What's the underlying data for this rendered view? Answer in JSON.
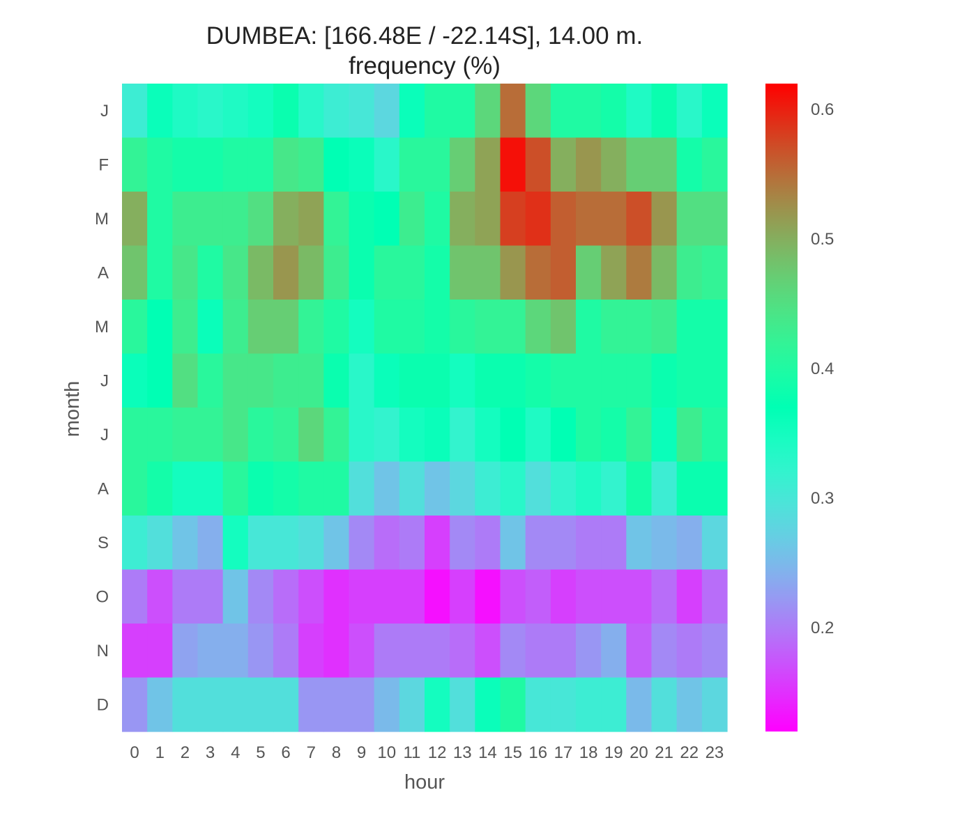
{
  "chart_data": {
    "type": "heatmap",
    "title": "DUMBEA: [166.48E / -22.14S], 14.00 m.",
    "subtitle": "frequency (%)",
    "xlabel": "hour",
    "ylabel": "month",
    "x_categories": [
      "0",
      "1",
      "2",
      "3",
      "4",
      "5",
      "6",
      "7",
      "8",
      "9",
      "10",
      "11",
      "12",
      "13",
      "14",
      "15",
      "16",
      "17",
      "18",
      "19",
      "20",
      "21",
      "22",
      "23"
    ],
    "y_categories": [
      "J",
      "F",
      "M",
      "A",
      "M",
      "J",
      "J",
      "A",
      "S",
      "O",
      "N",
      "D"
    ],
    "values": [
      [
        0.31,
        0.36,
        0.34,
        0.33,
        0.34,
        0.35,
        0.38,
        0.33,
        0.31,
        0.3,
        0.28,
        0.36,
        0.4,
        0.4,
        0.46,
        0.55,
        0.46,
        0.4,
        0.4,
        0.39,
        0.34,
        0.38,
        0.33,
        0.36
      ],
      [
        0.42,
        0.4,
        0.39,
        0.39,
        0.4,
        0.4,
        0.44,
        0.43,
        0.37,
        0.36,
        0.33,
        0.41,
        0.41,
        0.47,
        0.51,
        0.61,
        0.57,
        0.5,
        0.52,
        0.5,
        0.47,
        0.47,
        0.39,
        0.41
      ],
      [
        0.5,
        0.4,
        0.43,
        0.43,
        0.43,
        0.45,
        0.5,
        0.51,
        0.42,
        0.38,
        0.37,
        0.43,
        0.4,
        0.5,
        0.51,
        0.58,
        0.59,
        0.56,
        0.55,
        0.55,
        0.57,
        0.52,
        0.45,
        0.45
      ],
      [
        0.48,
        0.4,
        0.44,
        0.4,
        0.44,
        0.49,
        0.52,
        0.49,
        0.43,
        0.38,
        0.41,
        0.41,
        0.39,
        0.48,
        0.48,
        0.52,
        0.55,
        0.56,
        0.47,
        0.51,
        0.54,
        0.49,
        0.43,
        0.42
      ],
      [
        0.41,
        0.37,
        0.43,
        0.36,
        0.43,
        0.47,
        0.47,
        0.42,
        0.4,
        0.35,
        0.4,
        0.4,
        0.39,
        0.41,
        0.42,
        0.42,
        0.46,
        0.48,
        0.4,
        0.42,
        0.42,
        0.43,
        0.39,
        0.39
      ],
      [
        0.36,
        0.37,
        0.45,
        0.41,
        0.44,
        0.44,
        0.43,
        0.43,
        0.38,
        0.33,
        0.36,
        0.38,
        0.38,
        0.35,
        0.38,
        0.38,
        0.39,
        0.4,
        0.4,
        0.4,
        0.4,
        0.38,
        0.39,
        0.39
      ],
      [
        0.41,
        0.41,
        0.42,
        0.42,
        0.44,
        0.41,
        0.42,
        0.46,
        0.42,
        0.33,
        0.32,
        0.35,
        0.36,
        0.32,
        0.35,
        0.37,
        0.34,
        0.37,
        0.4,
        0.39,
        0.42,
        0.36,
        0.43,
        0.4
      ],
      [
        0.41,
        0.39,
        0.35,
        0.35,
        0.41,
        0.38,
        0.39,
        0.4,
        0.4,
        0.29,
        0.26,
        0.29,
        0.26,
        0.28,
        0.31,
        0.33,
        0.29,
        0.32,
        0.34,
        0.32,
        0.39,
        0.31,
        0.38,
        0.38
      ],
      [
        0.31,
        0.29,
        0.26,
        0.24,
        0.35,
        0.3,
        0.3,
        0.29,
        0.26,
        0.21,
        0.19,
        0.2,
        0.16,
        0.21,
        0.2,
        0.26,
        0.21,
        0.21,
        0.2,
        0.2,
        0.26,
        0.25,
        0.24,
        0.28
      ],
      [
        0.2,
        0.17,
        0.2,
        0.2,
        0.26,
        0.21,
        0.19,
        0.17,
        0.15,
        0.16,
        0.16,
        0.16,
        0.13,
        0.16,
        0.13,
        0.17,
        0.18,
        0.16,
        0.17,
        0.17,
        0.17,
        0.19,
        0.16,
        0.19
      ],
      [
        0.16,
        0.16,
        0.23,
        0.24,
        0.24,
        0.22,
        0.2,
        0.16,
        0.15,
        0.17,
        0.2,
        0.2,
        0.2,
        0.19,
        0.17,
        0.21,
        0.2,
        0.2,
        0.22,
        0.24,
        0.18,
        0.21,
        0.2,
        0.21
      ],
      [
        0.22,
        0.26,
        0.29,
        0.29,
        0.29,
        0.29,
        0.29,
        0.22,
        0.22,
        0.22,
        0.25,
        0.28,
        0.35,
        0.29,
        0.36,
        0.4,
        0.3,
        0.3,
        0.31,
        0.31,
        0.25,
        0.29,
        0.26,
        0.28
      ]
    ],
    "colorbar": {
      "colormap": "rainbow",
      "range": [
        0.12,
        0.62
      ],
      "ticks": [
        "0.2",
        "0.3",
        "0.4",
        "0.5",
        "0.6"
      ]
    },
    "grid": false
  }
}
